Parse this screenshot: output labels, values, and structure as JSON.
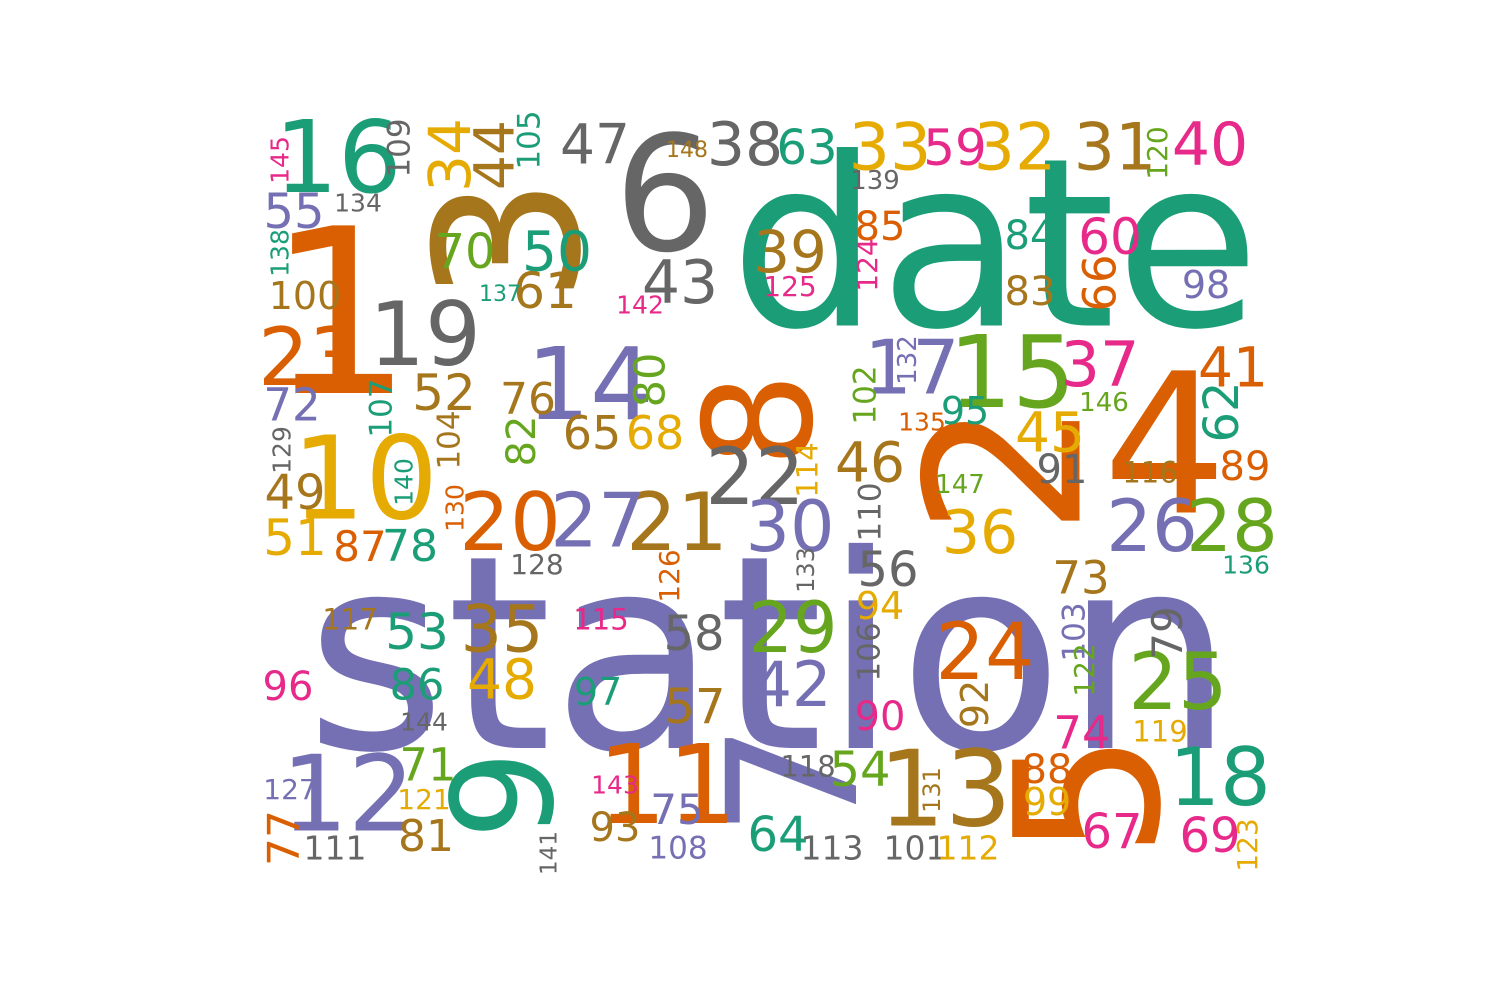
{
  "palette": {
    "teal": "#1b9e77",
    "orange": "#d95f02",
    "purple": "#7570b3",
    "pink": "#e7298a",
    "green": "#66a61e",
    "gold": "#e6ab02",
    "brown": "#a6761d",
    "gray": "#666666"
  },
  "words": [
    {
      "text": "station",
      "color": "purple",
      "vertical": false
    },
    {
      "text": "date",
      "color": "teal",
      "vertical": false
    },
    {
      "text": "1",
      "color": "orange",
      "vertical": false
    },
    {
      "text": "2",
      "color": "orange",
      "vertical": true
    },
    {
      "text": "3",
      "color": "brown",
      "vertical": true
    },
    {
      "text": "4",
      "color": "orange",
      "vertical": false
    },
    {
      "text": "5",
      "color": "orange",
      "vertical": true
    },
    {
      "text": "6",
      "color": "gray",
      "vertical": false
    },
    {
      "text": "7",
      "color": "purple",
      "vertical": true
    },
    {
      "text": "8",
      "color": "orange",
      "vertical": true
    },
    {
      "text": "9",
      "color": "teal",
      "vertical": true
    },
    {
      "text": "10",
      "color": "gold",
      "vertical": false
    },
    {
      "text": "11",
      "color": "orange",
      "vertical": false
    },
    {
      "text": "12",
      "color": "purple",
      "vertical": false
    },
    {
      "text": "13",
      "color": "brown",
      "vertical": false
    },
    {
      "text": "14",
      "color": "purple",
      "vertical": false
    },
    {
      "text": "15",
      "color": "green",
      "vertical": false
    },
    {
      "text": "16",
      "color": "teal",
      "vertical": false
    },
    {
      "text": "17",
      "color": "purple",
      "vertical": false
    },
    {
      "text": "18",
      "color": "teal",
      "vertical": false
    },
    {
      "text": "19",
      "color": "gray",
      "vertical": false
    },
    {
      "text": "20",
      "color": "orange",
      "vertical": false
    },
    {
      "text": "21",
      "color": "brown",
      "vertical": false
    },
    {
      "text": "22",
      "color": "gray",
      "vertical": false
    },
    {
      "text": "23",
      "color": "orange",
      "vertical": false
    },
    {
      "text": "24",
      "color": "orange",
      "vertical": false
    },
    {
      "text": "25",
      "color": "green",
      "vertical": false
    },
    {
      "text": "26",
      "color": "purple",
      "vertical": false
    },
    {
      "text": "27",
      "color": "purple",
      "vertical": false
    },
    {
      "text": "28",
      "color": "green",
      "vertical": false
    },
    {
      "text": "29",
      "color": "green",
      "vertical": false
    },
    {
      "text": "30",
      "color": "purple",
      "vertical": false
    },
    {
      "text": "31",
      "color": "brown",
      "vertical": false
    },
    {
      "text": "32",
      "color": "gold",
      "vertical": false
    },
    {
      "text": "33",
      "color": "gold",
      "vertical": false
    },
    {
      "text": "34",
      "color": "gold",
      "vertical": true
    },
    {
      "text": "35",
      "color": "brown",
      "vertical": false
    },
    {
      "text": "36",
      "color": "gold",
      "vertical": false
    },
    {
      "text": "37",
      "color": "pink",
      "vertical": false
    },
    {
      "text": "38",
      "color": "gray",
      "vertical": false
    },
    {
      "text": "39",
      "color": "brown",
      "vertical": false
    },
    {
      "text": "40",
      "color": "pink",
      "vertical": false
    },
    {
      "text": "41",
      "color": "orange",
      "vertical": false
    },
    {
      "text": "42",
      "color": "purple",
      "vertical": false
    },
    {
      "text": "43",
      "color": "gray",
      "vertical": false
    },
    {
      "text": "44",
      "color": "brown",
      "vertical": true
    },
    {
      "text": "45",
      "color": "gold",
      "vertical": false
    },
    {
      "text": "46",
      "color": "brown",
      "vertical": false
    },
    {
      "text": "47",
      "color": "gray",
      "vertical": false
    },
    {
      "text": "48",
      "color": "gold",
      "vertical": false
    },
    {
      "text": "49",
      "color": "brown",
      "vertical": false
    },
    {
      "text": "50",
      "color": "teal",
      "vertical": false
    },
    {
      "text": "51",
      "color": "gold",
      "vertical": false
    },
    {
      "text": "52",
      "color": "brown",
      "vertical": false
    },
    {
      "text": "53",
      "color": "teal",
      "vertical": false
    },
    {
      "text": "54",
      "color": "green",
      "vertical": false
    },
    {
      "text": "55",
      "color": "purple",
      "vertical": false
    },
    {
      "text": "56",
      "color": "gray",
      "vertical": false
    },
    {
      "text": "57",
      "color": "brown",
      "vertical": false
    },
    {
      "text": "58",
      "color": "gray",
      "vertical": false
    },
    {
      "text": "59",
      "color": "pink",
      "vertical": false
    },
    {
      "text": "60",
      "color": "pink",
      "vertical": false
    },
    {
      "text": "61",
      "color": "brown",
      "vertical": false
    },
    {
      "text": "62",
      "color": "teal",
      "vertical": true
    },
    {
      "text": "63",
      "color": "teal",
      "vertical": false
    },
    {
      "text": "64",
      "color": "teal",
      "vertical": false
    },
    {
      "text": "65",
      "color": "brown",
      "vertical": false
    },
    {
      "text": "66",
      "color": "orange",
      "vertical": true
    },
    {
      "text": "67",
      "color": "pink",
      "vertical": false
    },
    {
      "text": "68",
      "color": "gold",
      "vertical": false
    },
    {
      "text": "69",
      "color": "pink",
      "vertical": false
    },
    {
      "text": "70",
      "color": "green",
      "vertical": false
    },
    {
      "text": "71",
      "color": "green",
      "vertical": false
    },
    {
      "text": "72",
      "color": "purple",
      "vertical": false
    },
    {
      "text": "73",
      "color": "brown",
      "vertical": false
    },
    {
      "text": "74",
      "color": "pink",
      "vertical": false
    },
    {
      "text": "75",
      "color": "purple",
      "vertical": false
    },
    {
      "text": "76",
      "color": "brown",
      "vertical": false
    },
    {
      "text": "77",
      "color": "orange",
      "vertical": true
    },
    {
      "text": "78",
      "color": "teal",
      "vertical": false
    },
    {
      "text": "79",
      "color": "gray",
      "vertical": true
    },
    {
      "text": "80",
      "color": "green",
      "vertical": true
    },
    {
      "text": "81",
      "color": "brown",
      "vertical": false
    },
    {
      "text": "82",
      "color": "green",
      "vertical": true
    },
    {
      "text": "83",
      "color": "brown",
      "vertical": false
    },
    {
      "text": "84",
      "color": "teal",
      "vertical": false
    },
    {
      "text": "85",
      "color": "orange",
      "vertical": false
    },
    {
      "text": "86",
      "color": "teal",
      "vertical": false
    },
    {
      "text": "87",
      "color": "orange",
      "vertical": false
    },
    {
      "text": "88",
      "color": "orange",
      "vertical": false
    },
    {
      "text": "89",
      "color": "orange",
      "vertical": false
    },
    {
      "text": "90",
      "color": "pink",
      "vertical": false
    },
    {
      "text": "91",
      "color": "gray",
      "vertical": false
    },
    {
      "text": "92",
      "color": "brown",
      "vertical": true
    },
    {
      "text": "93",
      "color": "brown",
      "vertical": false
    },
    {
      "text": "94",
      "color": "gold",
      "vertical": false
    },
    {
      "text": "95",
      "color": "teal",
      "vertical": false
    },
    {
      "text": "96",
      "color": "pink",
      "vertical": false
    },
    {
      "text": "97",
      "color": "teal",
      "vertical": false
    },
    {
      "text": "98",
      "color": "purple",
      "vertical": false
    },
    {
      "text": "99",
      "color": "gold",
      "vertical": false
    },
    {
      "text": "100",
      "color": "brown",
      "vertical": false
    },
    {
      "text": "101",
      "color": "gray",
      "vertical": false
    },
    {
      "text": "102",
      "color": "green",
      "vertical": true
    },
    {
      "text": "103",
      "color": "purple",
      "vertical": true
    },
    {
      "text": "104",
      "color": "brown",
      "vertical": true
    },
    {
      "text": "105",
      "color": "teal",
      "vertical": true
    },
    {
      "text": "106",
      "color": "gray",
      "vertical": true
    },
    {
      "text": "107",
      "color": "teal",
      "vertical": true
    },
    {
      "text": "108",
      "color": "purple",
      "vertical": false
    },
    {
      "text": "109",
      "color": "gray",
      "vertical": true
    },
    {
      "text": "110",
      "color": "gray",
      "vertical": true
    },
    {
      "text": "111",
      "color": "gray",
      "vertical": false
    },
    {
      "text": "112",
      "color": "gold",
      "vertical": false
    },
    {
      "text": "113",
      "color": "gray",
      "vertical": false
    },
    {
      "text": "114",
      "color": "gold",
      "vertical": true
    },
    {
      "text": "115",
      "color": "pink",
      "vertical": false
    },
    {
      "text": "116",
      "color": "brown",
      "vertical": false
    },
    {
      "text": "117",
      "color": "brown",
      "vertical": false
    },
    {
      "text": "118",
      "color": "gray",
      "vertical": false
    },
    {
      "text": "119",
      "color": "gold",
      "vertical": false
    },
    {
      "text": "120",
      "color": "green",
      "vertical": true
    },
    {
      "text": "121",
      "color": "gold",
      "vertical": false
    },
    {
      "text": "122",
      "color": "green",
      "vertical": true
    },
    {
      "text": "123",
      "color": "gold",
      "vertical": true
    },
    {
      "text": "124",
      "color": "pink",
      "vertical": true
    },
    {
      "text": "125",
      "color": "pink",
      "vertical": false
    },
    {
      "text": "126",
      "color": "orange",
      "vertical": true
    },
    {
      "text": "127",
      "color": "purple",
      "vertical": false
    },
    {
      "text": "128",
      "color": "gray",
      "vertical": false
    },
    {
      "text": "129",
      "color": "gray",
      "vertical": true
    },
    {
      "text": "130",
      "color": "orange",
      "vertical": true
    },
    {
      "text": "131",
      "color": "brown",
      "vertical": true
    },
    {
      "text": "132",
      "color": "purple",
      "vertical": true
    },
    {
      "text": "133",
      "color": "gray",
      "vertical": true
    },
    {
      "text": "134",
      "color": "gray",
      "vertical": false
    },
    {
      "text": "135",
      "color": "orange",
      "vertical": false
    },
    {
      "text": "136",
      "color": "teal",
      "vertical": false
    },
    {
      "text": "137",
      "color": "teal",
      "vertical": false
    },
    {
      "text": "138",
      "color": "teal",
      "vertical": true
    },
    {
      "text": "139",
      "color": "gray",
      "vertical": false
    },
    {
      "text": "140",
      "color": "teal",
      "vertical": true
    },
    {
      "text": "141",
      "color": "gray",
      "vertical": true
    },
    {
      "text": "142",
      "color": "pink",
      "vertical": false
    },
    {
      "text": "143",
      "color": "pink",
      "vertical": false
    },
    {
      "text": "144",
      "color": "gray",
      "vertical": false
    },
    {
      "text": "145",
      "color": "pink",
      "vertical": true
    },
    {
      "text": "146",
      "color": "green",
      "vertical": false
    },
    {
      "text": "147",
      "color": "green",
      "vertical": false
    },
    {
      "text": "148",
      "color": "brown",
      "vertical": false
    }
  ]
}
